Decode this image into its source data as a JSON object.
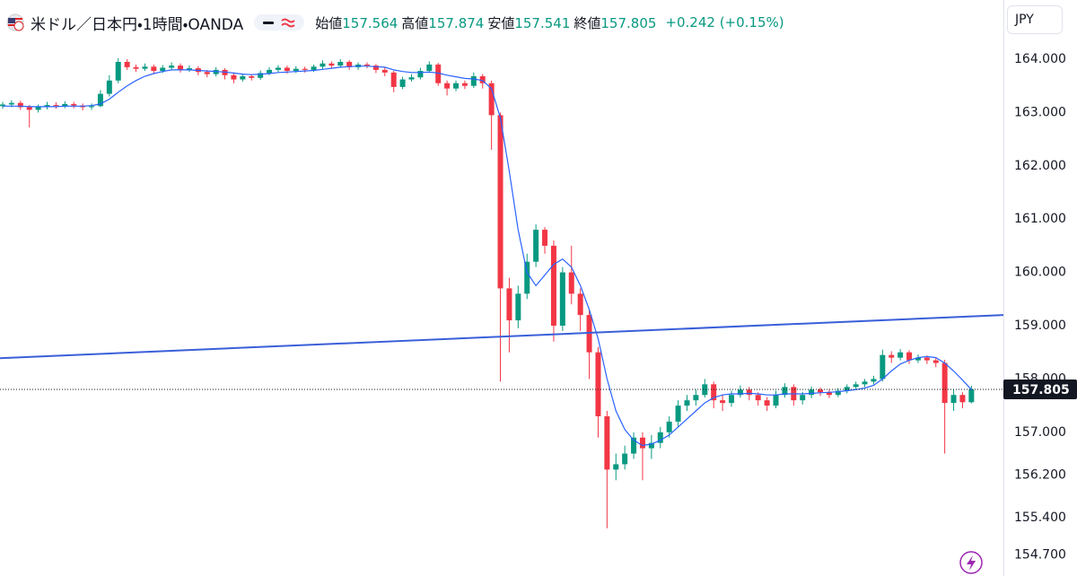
{
  "header": {
    "title": "米ドル／日本円・1時間・OANDA",
    "ohlc": [
      {
        "label": "始値",
        "value": "157.564"
      },
      {
        "label": "高値",
        "value": "157.874"
      },
      {
        "label": "安値",
        "value": "157.541"
      },
      {
        "label": "終値",
        "value": "157.805"
      }
    ],
    "change": "+0.242 (+0.15%)"
  },
  "ui": {
    "currency": "JPY"
  },
  "chart_data": {
    "type": "candlestick",
    "up_color": "#089981",
    "down_color": "#f23645",
    "grid": false,
    "xlim": [
      -0.303,
      112.6
    ],
    "ylim": [
      154.303,
      165.111
    ],
    "yticks": [
      {
        "value": 164,
        "label": "164.000"
      },
      {
        "value": 163,
        "label": "163.000"
      },
      {
        "value": 162,
        "label": "162.000"
      },
      {
        "value": 161,
        "label": "161.000"
      },
      {
        "value": 160,
        "label": "160.000"
      },
      {
        "value": 159,
        "label": "159.000"
      },
      {
        "value": 158,
        "label": "158.000"
      },
      {
        "value": 157,
        "label": "157.000"
      },
      {
        "value": 156.2,
        "label": "156.200"
      },
      {
        "value": 155.4,
        "label": "155.400"
      },
      {
        "value": 154.7,
        "label": "154.700"
      }
    ],
    "open": [
      163.12,
      163.15,
      163.18,
      163.1,
      163.05,
      163.1,
      163.14,
      163.12,
      163.16,
      163.13,
      163.1,
      163.12,
      163.35,
      163.6,
      163.95,
      163.85,
      163.82,
      163.86,
      163.78,
      163.84,
      163.88,
      163.8,
      163.83,
      163.76,
      163.72,
      163.8,
      163.7,
      163.62,
      163.68,
      163.65,
      163.74,
      163.8,
      163.84,
      163.78,
      163.82,
      163.8,
      163.86,
      163.92,
      163.88,
      163.95,
      163.85,
      163.9,
      163.88,
      163.8,
      163.75,
      163.48,
      163.62,
      163.66,
      163.78,
      163.9,
      163.55,
      163.45,
      163.55,
      163.5,
      163.68,
      163.55,
      162.95,
      159.7,
      159.1,
      159.6,
      160.2,
      160.8,
      160.5,
      159.0,
      160.0,
      159.6,
      159.2,
      158.5,
      157.3,
      156.3,
      156.4,
      156.6,
      156.9,
      156.7,
      156.8,
      157.0,
      157.2,
      157.5,
      157.6,
      157.7,
      157.9,
      157.6,
      157.55,
      157.7,
      157.8,
      157.7,
      157.6,
      157.5,
      157.7,
      157.85,
      157.6,
      157.7,
      157.8,
      157.75,
      157.7,
      157.78,
      157.85,
      157.9,
      157.95,
      158.0,
      158.45,
      158.4,
      158.5,
      158.35,
      158.4,
      158.35,
      158.3,
      157.55,
      157.7,
      157.564
    ],
    "high": [
      163.2,
      163.23,
      163.22,
      163.14,
      163.15,
      163.2,
      163.19,
      163.21,
      163.2,
      163.17,
      163.17,
      163.42,
      163.7,
      164.02,
      164.0,
      163.9,
      163.92,
      163.9,
      163.89,
      163.94,
      163.92,
      163.88,
      163.87,
      163.8,
      163.85,
      163.83,
      163.74,
      163.73,
      163.72,
      163.79,
      163.85,
      163.89,
      163.88,
      163.87,
      163.86,
      163.9,
      163.98,
      163.96,
      164.0,
      163.98,
      163.94,
      163.94,
      163.91,
      163.84,
      163.78,
      163.67,
      163.72,
      163.84,
      163.96,
      163.93,
      163.6,
      163.6,
      163.6,
      163.75,
      163.72,
      163.6,
      163.0,
      159.9,
      159.75,
      160.35,
      160.9,
      160.85,
      160.6,
      160.1,
      160.5,
      159.7,
      159.3,
      158.6,
      157.4,
      156.6,
      156.75,
      157.0,
      157.0,
      156.95,
      157.1,
      157.3,
      157.6,
      157.7,
      157.8,
      158.0,
      157.95,
      157.7,
      157.78,
      157.88,
      157.85,
      157.75,
      157.66,
      157.78,
      157.92,
      157.9,
      157.76,
      157.86,
      157.84,
      157.8,
      157.83,
      157.9,
      157.95,
      158.0,
      158.06,
      158.55,
      158.52,
      158.56,
      158.54,
      158.46,
      158.44,
      158.4,
      158.36,
      157.8,
      157.75,
      157.874
    ],
    "low": [
      163.07,
      163.1,
      163.05,
      162.72,
      163.0,
      163.06,
      163.07,
      163.08,
      163.08,
      163.04,
      163.05,
      163.1,
      163.3,
      163.55,
      163.8,
      163.76,
      163.78,
      163.72,
      163.74,
      163.8,
      163.75,
      163.76,
      163.7,
      163.66,
      163.68,
      163.62,
      163.55,
      163.58,
      163.6,
      163.61,
      163.7,
      163.76,
      163.73,
      163.74,
      163.75,
      163.76,
      163.82,
      163.83,
      163.84,
      163.8,
      163.8,
      163.83,
      163.74,
      163.68,
      163.38,
      163.44,
      163.58,
      163.62,
      163.74,
      163.5,
      163.32,
      163.4,
      163.44,
      163.46,
      163.45,
      162.3,
      157.95,
      158.5,
      158.95,
      159.5,
      160.1,
      160.35,
      158.7,
      158.9,
      159.4,
      158.9,
      158.0,
      156.9,
      155.2,
      156.1,
      156.3,
      156.5,
      156.1,
      156.5,
      156.7,
      156.9,
      157.1,
      157.4,
      157.5,
      157.65,
      157.45,
      157.4,
      157.48,
      157.65,
      157.6,
      157.5,
      157.4,
      157.45,
      157.65,
      157.5,
      157.52,
      157.64,
      157.68,
      157.64,
      157.66,
      157.73,
      157.8,
      157.85,
      157.9,
      157.95,
      158.3,
      158.35,
      158.28,
      158.3,
      158.28,
      158.22,
      156.6,
      157.4,
      157.45,
      157.541
    ],
    "close": [
      163.15,
      163.18,
      163.1,
      163.05,
      163.1,
      163.14,
      163.12,
      163.16,
      163.13,
      163.1,
      163.12,
      163.35,
      163.6,
      163.95,
      163.85,
      163.82,
      163.86,
      163.78,
      163.84,
      163.88,
      163.8,
      163.83,
      163.76,
      163.72,
      163.8,
      163.7,
      163.62,
      163.68,
      163.65,
      163.74,
      163.8,
      163.84,
      163.78,
      163.82,
      163.8,
      163.86,
      163.92,
      163.88,
      163.95,
      163.85,
      163.9,
      163.88,
      163.8,
      163.75,
      163.48,
      163.62,
      163.66,
      163.78,
      163.9,
      163.55,
      163.45,
      163.55,
      163.5,
      163.68,
      163.55,
      162.95,
      159.7,
      159.1,
      159.6,
      160.2,
      160.8,
      160.5,
      159.0,
      160.0,
      159.6,
      159.2,
      158.5,
      157.3,
      156.3,
      156.4,
      156.6,
      156.9,
      156.7,
      156.8,
      157.0,
      157.2,
      157.5,
      157.6,
      157.7,
      157.9,
      157.6,
      157.55,
      157.7,
      157.8,
      157.7,
      157.6,
      157.5,
      157.7,
      157.85,
      157.6,
      157.7,
      157.8,
      157.75,
      157.7,
      157.78,
      157.85,
      157.9,
      157.95,
      158.0,
      158.45,
      158.4,
      158.5,
      158.35,
      158.4,
      158.35,
      158.3,
      157.55,
      157.7,
      157.564,
      157.805
    ],
    "ma": {
      "color": "#2962ff",
      "values": [
        163.12,
        163.12,
        163.12,
        163.11,
        163.11,
        163.11,
        163.11,
        163.12,
        163.12,
        163.12,
        163.13,
        163.16,
        163.25,
        163.38,
        163.5,
        163.6,
        163.68,
        163.73,
        163.77,
        163.8,
        163.8,
        163.8,
        163.79,
        163.78,
        163.77,
        163.76,
        163.74,
        163.72,
        163.71,
        163.72,
        163.73,
        163.75,
        163.76,
        163.77,
        163.78,
        163.79,
        163.81,
        163.83,
        163.85,
        163.86,
        163.87,
        163.87,
        163.86,
        163.85,
        163.8,
        163.77,
        163.75,
        163.75,
        163.76,
        163.74,
        163.7,
        163.67,
        163.64,
        163.63,
        163.6,
        163.45,
        162.9,
        161.9,
        160.8,
        160.0,
        159.75,
        159.95,
        160.15,
        160.25,
        160.1,
        159.75,
        159.3,
        158.75,
        158.0,
        157.4,
        157.05,
        156.85,
        156.75,
        156.78,
        156.85,
        156.95,
        157.1,
        157.25,
        157.4,
        157.55,
        157.65,
        157.7,
        157.72,
        157.72,
        157.73,
        157.72,
        157.7,
        157.7,
        157.72,
        157.72,
        157.72,
        157.73,
        157.74,
        157.75,
        157.76,
        157.78,
        157.8,
        157.83,
        157.88,
        158.0,
        158.15,
        158.28,
        158.35,
        158.4,
        158.42,
        158.4,
        158.3,
        158.15,
        157.98,
        157.8
      ]
    },
    "trendline": {
      "color": "#3a5fd9",
      "x": [
        -0.303,
        112.6
      ],
      "y": [
        158.39,
        159.2
      ]
    },
    "last_price": 157.805
  }
}
